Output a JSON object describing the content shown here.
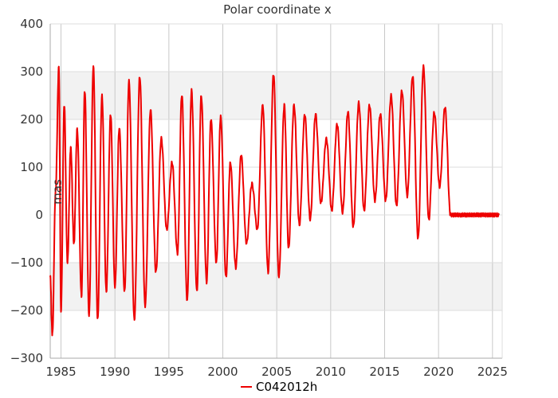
{
  "chart_data": {
    "type": "line",
    "title": "Polar coordinate x",
    "xlabel": "",
    "ylabel": "mas",
    "xlim": [
      1984.0,
      2025.9
    ],
    "ylim": [
      -300,
      400
    ],
    "x_ticks": [
      1985,
      1990,
      1995,
      2000,
      2005,
      2010,
      2015,
      2020,
      2025
    ],
    "x_tick_labels": [
      "1985",
      "1990",
      "1995",
      "2000",
      "2005",
      "2010",
      "2015",
      "2020",
      "2025"
    ],
    "y_ticks": [
      -300,
      -200,
      -100,
      0,
      100,
      200,
      300,
      400
    ],
    "y_tick_labels": [
      "−300",
      "−200",
      "−100",
      "0",
      "100",
      "200",
      "300",
      "400"
    ],
    "shaded_bands": [
      [
        200,
        300
      ],
      [
        -200,
        -100
      ]
    ],
    "grid": true,
    "legend_position": "bottom-center",
    "series": [
      {
        "name": "C042012h",
        "color": "#ee0000",
        "x": [
          1984.0,
          1984.2,
          1984.5,
          1984.8,
          1985.0,
          1985.3,
          1985.6,
          1985.9,
          1986.2,
          1986.5,
          1986.9,
          1987.2,
          1987.6,
          1988.0,
          1988.4,
          1988.8,
          1989.2,
          1989.6,
          1990.0,
          1990.4,
          1990.9,
          1991.3,
          1991.8,
          1992.3,
          1992.8,
          1993.3,
          1993.8,
          1994.3,
          1994.8,
          1995.3,
          1995.8,
          1996.2,
          1996.7,
          1997.1,
          1997.6,
          1998.0,
          1998.5,
          1998.9,
          1999.4,
          1999.8,
          2000.3,
          2000.7,
          2001.2,
          2001.7,
          2002.2,
          2002.7,
          2003.2,
          2003.7,
          2004.2,
          2004.7,
          2005.2,
          2005.7,
          2006.1,
          2006.6,
          2007.1,
          2007.6,
          2008.1,
          2008.6,
          2009.1,
          2009.6,
          2010.1,
          2010.6,
          2011.1,
          2011.6,
          2012.1,
          2012.6,
          2013.1,
          2013.6,
          2014.1,
          2014.6,
          2015.1,
          2015.6,
          2016.1,
          2016.6,
          2017.1,
          2017.6,
          2018.1,
          2018.6,
          2019.1,
          2019.6,
          2020.1,
          2020.6,
          2021.1,
          2021.6,
          2022.1,
          2022.6,
          2023.1,
          2023.6,
          2024.1,
          2024.6,
          2025.1,
          2025.6
        ],
        "y": [
          -130,
          -250,
          50,
          310,
          -200,
          230,
          -100,
          140,
          -60,
          180,
          -170,
          260,
          -210,
          310,
          -220,
          250,
          -160,
          210,
          -150,
          180,
          -160,
          280,
          -220,
          290,
          -190,
          220,
          -120,
          160,
          -30,
          110,
          -80,
          250,
          -180,
          260,
          -160,
          250,
          -140,
          200,
          -100,
          205,
          -130,
          110,
          -110,
          125,
          -60,
          65,
          -30,
          230,
          -120,
          295,
          -130,
          230,
          -70,
          230,
          -20,
          210,
          -10,
          210,
          25,
          160,
          10,
          190,
          5,
          215,
          -25,
          235,
          10,
          230,
          30,
          210,
          30,
          250,
          20,
          260,
          40,
          290,
          -50,
          310,
          -10,
          215,
          60,
          225,
          0,
          0,
          0,
          0,
          0,
          0,
          0,
          0,
          0,
          0
        ]
      }
    ]
  }
}
